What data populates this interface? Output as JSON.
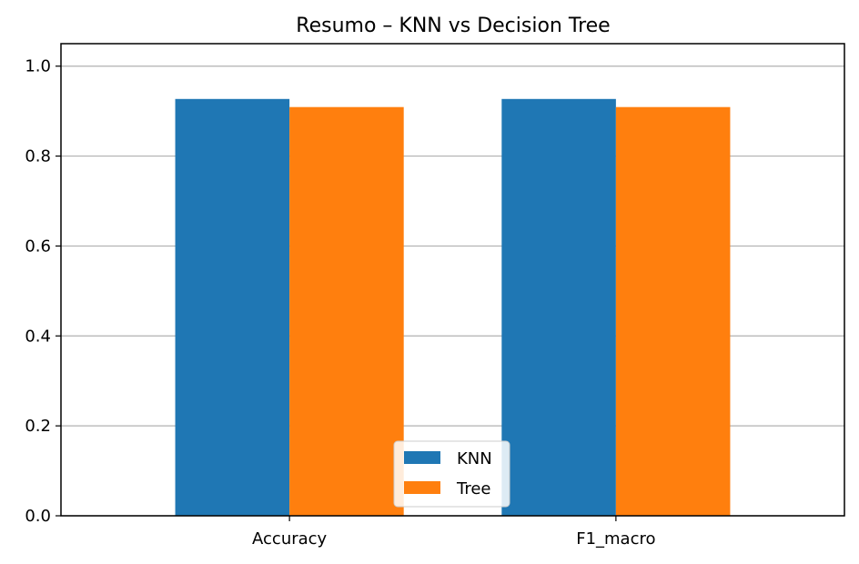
{
  "chart_data": {
    "type": "bar",
    "title": "Resumo – KNN vs Decision Tree",
    "xlabel": "",
    "ylabel": "",
    "categories": [
      "Accuracy",
      "F1_macro"
    ],
    "series": [
      {
        "name": "KNN",
        "values": [
          0.927,
          0.927
        ],
        "color": "#1f77b4"
      },
      {
        "name": "Tree",
        "values": [
          0.909,
          0.909
        ],
        "color": "#ff7f0e"
      }
    ],
    "ylim": [
      0,
      1.05
    ],
    "yticks": [
      "0.0",
      "0.2",
      "0.4",
      "0.6",
      "0.8",
      "1.0"
    ],
    "grid": "y",
    "legend_position": "bottom-center"
  }
}
